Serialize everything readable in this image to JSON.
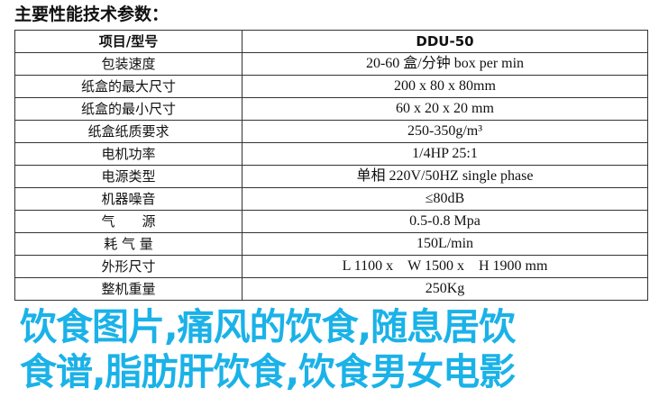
{
  "title": "主要性能技术参数：",
  "header": {
    "key": "项目/型号",
    "value": "DDU-50"
  },
  "rows": [
    {
      "key": "包装速度",
      "value": "20-60 盒/分钟 box per min"
    },
    {
      "key": "纸盒的最大尺寸",
      "value": "200 x 80 x 80mm"
    },
    {
      "key": "纸盒的最小尺寸",
      "value": "60 x 20 x 20 mm"
    },
    {
      "key": "纸盒纸质要求",
      "value": "250-350g/m³"
    },
    {
      "key": "电机功率",
      "value": "1/4HP 25:1"
    },
    {
      "key": "电源类型",
      "value": "单相 220V/50HZ single phase"
    },
    {
      "key": "机器噪音",
      "value": "≤80dB"
    },
    {
      "key": "气　　源",
      "value": "0.5-0.8 Mpa"
    },
    {
      "key": "耗 气 量",
      "value": "150L/min"
    },
    {
      "key": "外形尺寸",
      "value": "L 1100 x　W 1500 x　H 1900 mm"
    },
    {
      "key": "整机重量",
      "value": "250Kg"
    }
  ],
  "overlay_text": {
    "line1": "饮食图片,痛风的饮食,随息居饮",
    "line2": "食谱,脂肪肝饮食,饮食男女电影"
  },
  "colors": {
    "overlay": "#1ab2e8"
  }
}
